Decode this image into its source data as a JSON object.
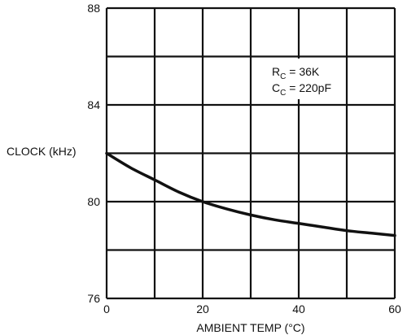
{
  "chart_data": {
    "type": "line",
    "xlabel": "AMBIENT TEMP (°C)",
    "ylabel": "CLOCK (kHz)",
    "xlim": [
      0,
      60
    ],
    "ylim": [
      76,
      88
    ],
    "x_ticks": [
      0,
      20,
      40,
      60
    ],
    "y_ticks": [
      76,
      80,
      84,
      88
    ],
    "grid": true,
    "grid_x_step": 10,
    "grid_y_step": 2,
    "series": [
      {
        "x": [
          0,
          5,
          10,
          15,
          20,
          25,
          30,
          35,
          40,
          45,
          50,
          55,
          60
        ],
        "values": [
          82.0,
          81.4,
          80.9,
          80.4,
          80.0,
          79.7,
          79.45,
          79.25,
          79.1,
          78.95,
          78.8,
          78.7,
          78.6
        ],
        "color": "#111111"
      }
    ],
    "annotation": {
      "line1_main": "R",
      "line1_sub": "C",
      "line1_rest": " = 36K",
      "line2_main": "C",
      "line2_sub": "C",
      "line2_rest": " = 220pF"
    }
  }
}
